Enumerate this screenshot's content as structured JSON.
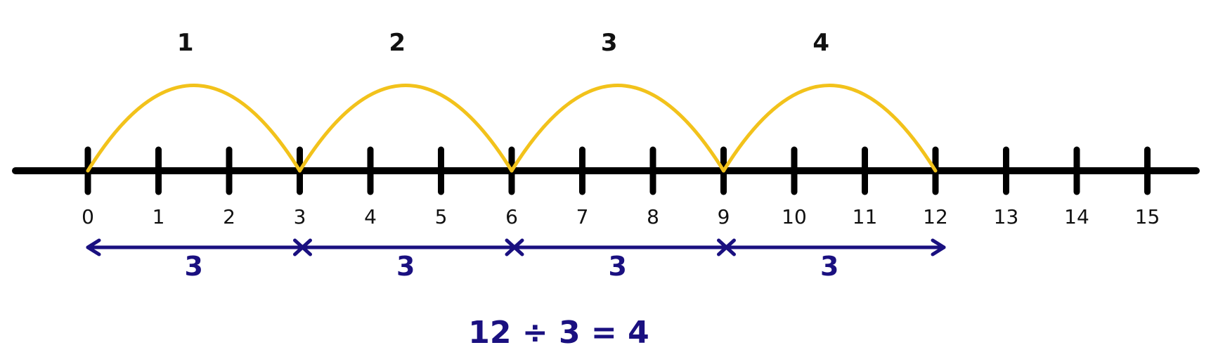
{
  "number_line": {
    "ticks": [
      "0",
      "1",
      "2",
      "3",
      "4",
      "5",
      "6",
      "7",
      "8",
      "9",
      "10",
      "11",
      "12",
      "13",
      "14",
      "15"
    ],
    "line_color": "#000000"
  },
  "jumps": {
    "labels": [
      "1",
      "2",
      "3",
      "4"
    ],
    "step": 3,
    "arc_color": "#F2C21B"
  },
  "segments": {
    "labels": [
      "3",
      "3",
      "3",
      "3"
    ],
    "color": "#1A1080"
  },
  "equation": "12 ÷ 3 = 4"
}
